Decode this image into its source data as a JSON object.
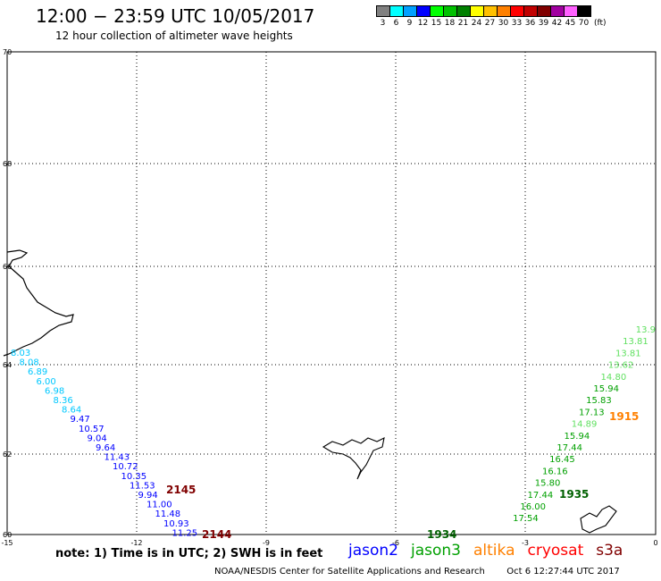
{
  "header": {
    "title": "12:00 − 23:59 UTC 10/05/2017",
    "subtitle": "12 hour collection of altimeter wave heights"
  },
  "legend": {
    "colors": [
      "#808080",
      "#00ffff",
      "#00a0ff",
      "#0000ff",
      "#00ff00",
      "#00c000",
      "#008000",
      "#ffff00",
      "#ffc000",
      "#ff8000",
      "#ff0000",
      "#c00000",
      "#800000",
      "#a000a0",
      "#ff60ff",
      "#000000"
    ],
    "labels": [
      "3",
      "6",
      "9",
      "12",
      "15",
      "18",
      "21",
      "24",
      "27",
      "30",
      "33",
      "36",
      "39",
      "42",
      "45",
      "70"
    ],
    "unit": "(ft)"
  },
  "axes": {
    "x_ticks": [
      "-15",
      "-12",
      "-9",
      "-6",
      "-3",
      "0"
    ],
    "y_ticks": [
      "70",
      "68",
      "66",
      "64",
      "62",
      "60"
    ]
  },
  "tracks": [
    {
      "satellite": "jason2",
      "time": "2145",
      "color": "#800000",
      "points": [
        {
          "v": "8.03",
          "c": "#00c8ff"
        },
        {
          "v": "8.08",
          "c": "#00c8ff"
        },
        {
          "v": "6.89",
          "c": "#00c8ff"
        },
        {
          "v": "6.00",
          "c": "#00c8ff"
        },
        {
          "v": "6.98",
          "c": "#00c8ff"
        },
        {
          "v": "8.36",
          "c": "#00c8ff"
        },
        {
          "v": "8.64",
          "c": "#00c8ff"
        },
        {
          "v": "9.47",
          "c": "#0000ff"
        },
        {
          "v": "10.57",
          "c": "#0000ff"
        },
        {
          "v": "9.04",
          "c": "#0000ff"
        },
        {
          "v": "9.64",
          "c": "#0000ff"
        },
        {
          "v": "11.43",
          "c": "#0000ff"
        },
        {
          "v": "10.72",
          "c": "#0000ff"
        },
        {
          "v": "10.35",
          "c": "#0000ff"
        },
        {
          "v": "11.53",
          "c": "#0000ff"
        },
        {
          "v": "9.94",
          "c": "#0000ff"
        },
        {
          "v": "11.00",
          "c": "#0000ff"
        },
        {
          "v": "11.48",
          "c": "#0000ff"
        },
        {
          "v": "10.93",
          "c": "#0000ff"
        },
        {
          "v": "11.25",
          "c": "#0000ff"
        }
      ]
    },
    {
      "satellite": "jason3",
      "time": "1935",
      "color": "#006000",
      "points": [
        {
          "v": "13.9",
          "c": "#60e060"
        },
        {
          "v": "13.81",
          "c": "#60e060"
        },
        {
          "v": "13.81",
          "c": "#60e060"
        },
        {
          "v": "13.62",
          "c": "#60e060"
        },
        {
          "v": "14.80",
          "c": "#60e060"
        },
        {
          "v": "15.94",
          "c": "#00a000"
        },
        {
          "v": "15.83",
          "c": "#00a000"
        },
        {
          "v": "17.13",
          "c": "#00a000"
        },
        {
          "v": "14.89",
          "c": "#60e060"
        },
        {
          "v": "15.94",
          "c": "#00a000"
        },
        {
          "v": "17.44",
          "c": "#00a000"
        },
        {
          "v": "16.45",
          "c": "#00a000"
        },
        {
          "v": "16.16",
          "c": "#00a000"
        },
        {
          "v": "15.80",
          "c": "#00a000"
        },
        {
          "v": "17.44",
          "c": "#00a000"
        },
        {
          "v": "16.00",
          "c": "#00a000"
        },
        {
          "v": "17.54",
          "c": "#00a000"
        }
      ]
    }
  ],
  "markers": [
    {
      "text": "2144",
      "color": "#800000"
    },
    {
      "text": "1915",
      "color": "#ff8000"
    },
    {
      "text": "1934",
      "color": "#006000"
    }
  ],
  "footer": {
    "note": "note:  1) Time is in UTC;  2) SWH is in feet",
    "satellites": [
      {
        "name": "jason2",
        "color": "#0000ff"
      },
      {
        "name": "jason3",
        "color": "#00a000"
      },
      {
        "name": "altika",
        "color": "#ff8000"
      },
      {
        "name": "cryosat",
        "color": "#ff0000"
      },
      {
        "name": "s3a",
        "color": "#800000"
      }
    ],
    "credit": "NOAA/NESDIS Center for Satellite Applications and Research",
    "timestamp": "Oct  6 12:27:44 UTC 2017"
  }
}
